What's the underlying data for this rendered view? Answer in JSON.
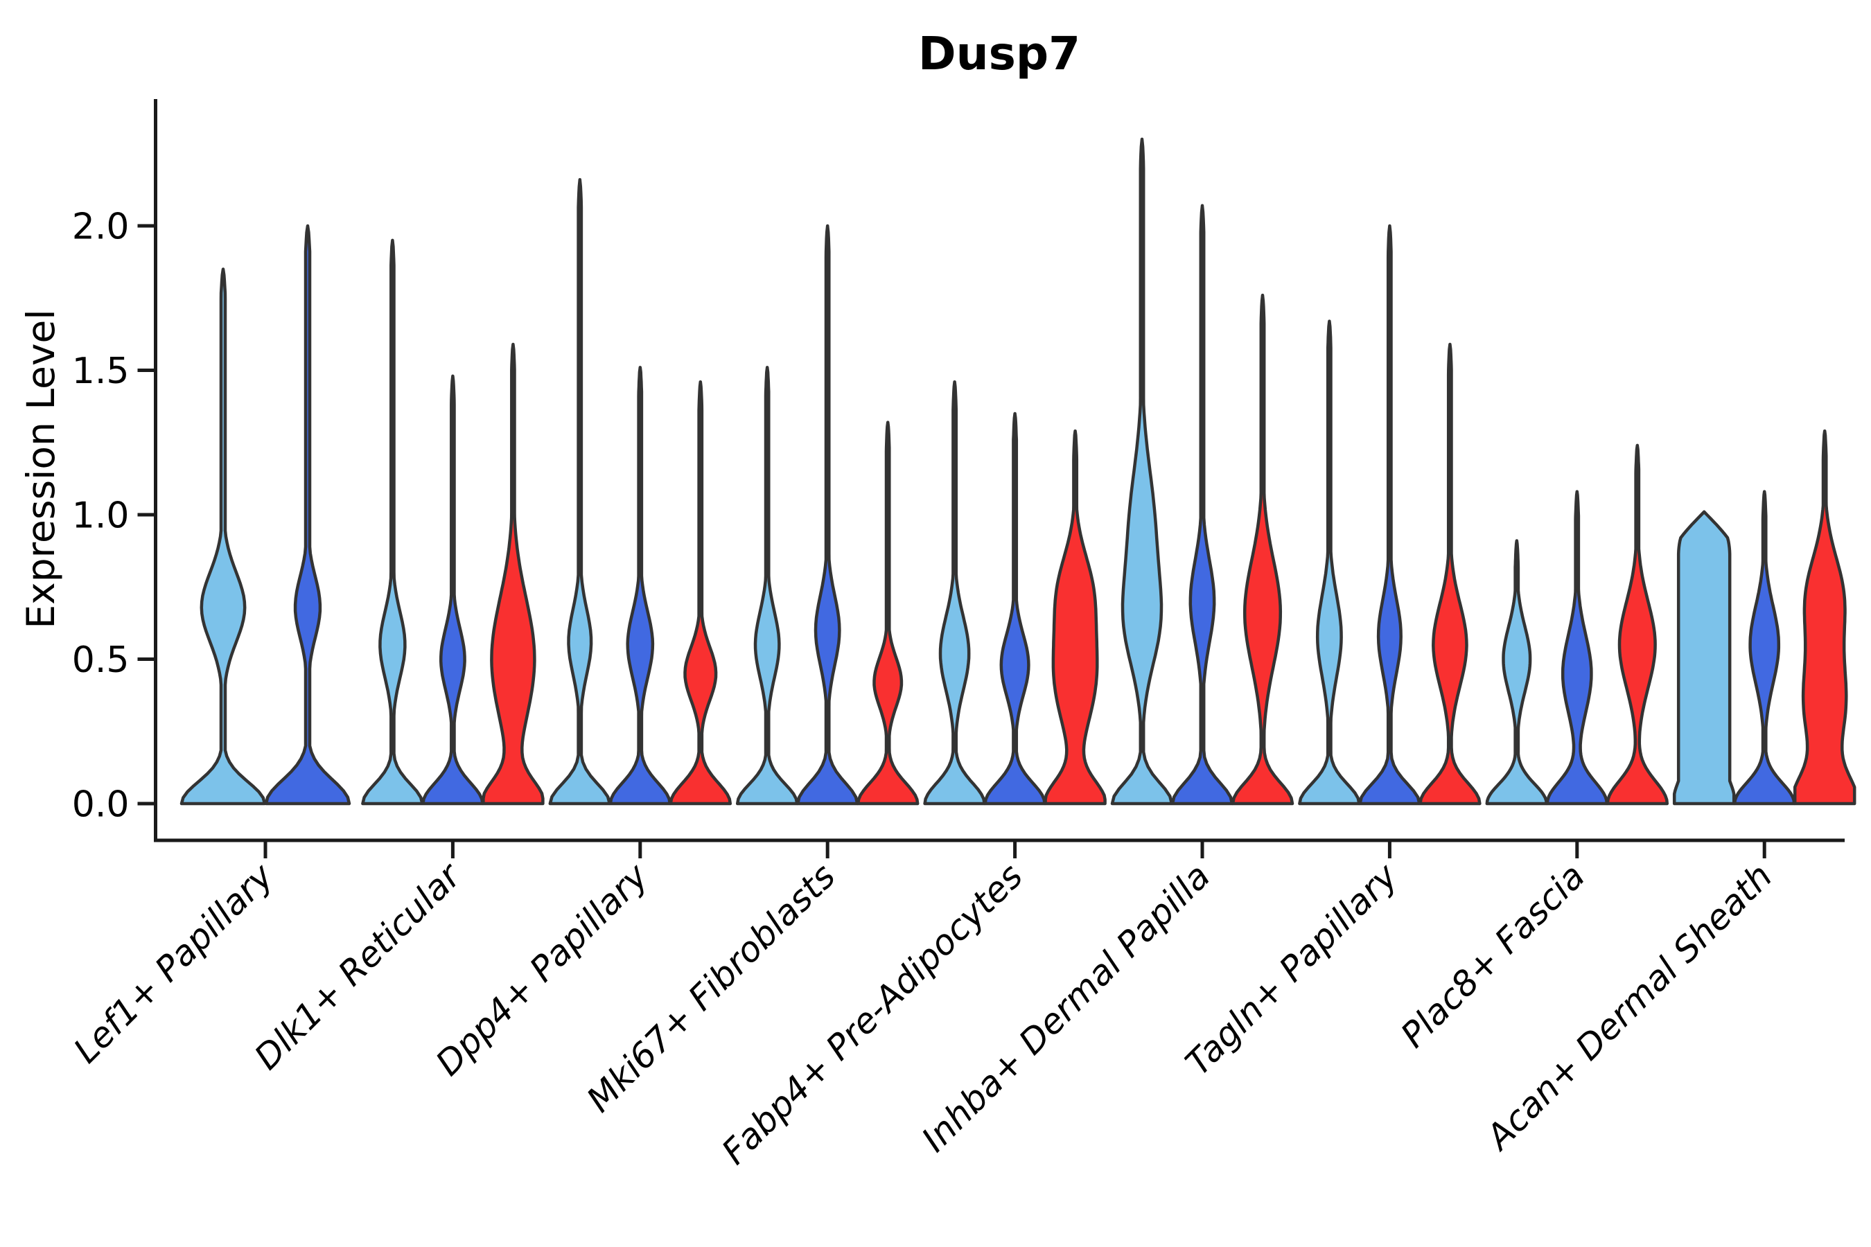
{
  "title": "Dusp7",
  "axes": {
    "ylabel": "Expression Level",
    "yticks": [
      "0.0",
      "0.5",
      "1.0",
      "1.5",
      "2.0"
    ],
    "ytick_values": [
      0.0,
      0.5,
      1.0,
      1.5,
      2.0
    ]
  },
  "palette": {
    "light_blue": "#7CC2EA",
    "dark_blue": "#4169E1",
    "red": "#F93030",
    "violin_stroke": "#333333",
    "axis_color": "#1a1a1a",
    "background": "#FFFFFF"
  },
  "chart_data": {
    "type": "violin",
    "title": "Dusp7",
    "xlabel": "",
    "ylabel": "Expression Level",
    "ylim": [
      -0.12,
      2.44
    ],
    "yticks": [
      0.0,
      0.5,
      1.0,
      1.5,
      2.0
    ],
    "grid": false,
    "legend": "none",
    "categories": [
      "Lef1+ Papillary",
      "Dlk1+ Reticular",
      "Dpp4+ Papillary",
      "Mki67+ Fibroblasts",
      "Fabp4+ Pre-Adipocytes",
      "Inhba+ Dermal Papilla",
      "Tagln+ Papillary",
      "Plac8+ Fascia",
      "Acan+ Dermal Sheath"
    ],
    "series": [
      {
        "name": "light_blue",
        "color_key": "light_blue",
        "max_expression": [
          1.85,
          1.95,
          2.16,
          1.51,
          1.46,
          2.3,
          1.67,
          0.91,
          1.01
        ]
      },
      {
        "name": "dark_blue",
        "color_key": "dark_blue",
        "max_expression": [
          2.0,
          1.48,
          1.51,
          2.0,
          1.35,
          2.07,
          2.0,
          1.08,
          1.08
        ]
      },
      {
        "name": "red",
        "color_key": "red",
        "max_expression": [
          null,
          1.59,
          1.46,
          1.32,
          1.29,
          1.76,
          1.59,
          1.24,
          1.29
        ]
      }
    ],
    "violins": [
      {
        "cat": 0,
        "series": "light_blue",
        "tip": 1.85,
        "base_w": 0.105,
        "bulges": [
          {
            "c": 0.68,
            "a": 0.52,
            "w": 0.17
          }
        ]
      },
      {
        "cat": 0,
        "series": "dark_blue",
        "tip": 2.0,
        "base_w": 0.115,
        "bulges": [
          {
            "c": 0.68,
            "a": 0.3,
            "w": 0.15
          }
        ]
      },
      {
        "cat": 1,
        "series": "light_blue",
        "tip": 1.95,
        "base_w": 0.095,
        "bulges": [
          {
            "c": 0.55,
            "a": 0.42,
            "w": 0.16
          }
        ]
      },
      {
        "cat": 1,
        "series": "dark_blue",
        "tip": 1.48,
        "base_w": 0.1,
        "bulges": [
          {
            "c": 0.5,
            "a": 0.4,
            "w": 0.15
          }
        ]
      },
      {
        "cat": 1,
        "series": "red",
        "tip": 1.59,
        "base_w": 0.11,
        "bulges": [
          {
            "c": 0.5,
            "a": 0.72,
            "w": 0.3
          }
        ]
      },
      {
        "cat": 2,
        "series": "light_blue",
        "tip": 2.16,
        "base_w": 0.095,
        "bulges": [
          {
            "c": 0.56,
            "a": 0.38,
            "w": 0.16
          }
        ]
      },
      {
        "cat": 2,
        "series": "dark_blue",
        "tip": 1.51,
        "base_w": 0.1,
        "bulges": [
          {
            "c": 0.55,
            "a": 0.42,
            "w": 0.16
          }
        ]
      },
      {
        "cat": 2,
        "series": "red",
        "tip": 1.46,
        "base_w": 0.1,
        "bulges": [
          {
            "c": 0.45,
            "a": 0.52,
            "w": 0.13
          }
        ]
      },
      {
        "cat": 3,
        "series": "light_blue",
        "tip": 1.51,
        "base_w": 0.095,
        "bulges": [
          {
            "c": 0.55,
            "a": 0.4,
            "w": 0.16
          }
        ]
      },
      {
        "cat": 3,
        "series": "dark_blue",
        "tip": 2.0,
        "base_w": 0.1,
        "bulges": [
          {
            "c": 0.6,
            "a": 0.4,
            "w": 0.17
          }
        ]
      },
      {
        "cat": 3,
        "series": "red",
        "tip": 1.32,
        "base_w": 0.1,
        "bulges": [
          {
            "c": 0.42,
            "a": 0.46,
            "w": 0.12
          }
        ]
      },
      {
        "cat": 4,
        "series": "light_blue",
        "tip": 1.46,
        "base_w": 0.1,
        "bulges": [
          {
            "c": 0.52,
            "a": 0.48,
            "w": 0.18
          }
        ]
      },
      {
        "cat": 4,
        "series": "dark_blue",
        "tip": 1.35,
        "base_w": 0.1,
        "bulges": [
          {
            "c": 0.48,
            "a": 0.46,
            "w": 0.15
          }
        ]
      },
      {
        "cat": 4,
        "series": "red",
        "tip": 1.29,
        "base_w": 0.11,
        "bulges": [
          {
            "c": 0.45,
            "a": 0.7,
            "w": 0.25
          },
          {
            "c": 0.75,
            "a": 0.45,
            "w": 0.18
          }
        ]
      },
      {
        "cat": 5,
        "series": "light_blue",
        "tip": 2.3,
        "base_w": 0.1,
        "bulges": [
          {
            "c": 0.62,
            "a": 0.5,
            "w": 0.22
          },
          {
            "c": 0.95,
            "a": 0.42,
            "w": 0.3
          }
        ]
      },
      {
        "cat": 5,
        "series": "dark_blue",
        "tip": 2.07,
        "base_w": 0.1,
        "bulges": [
          {
            "c": 0.7,
            "a": 0.4,
            "w": 0.2
          }
        ]
      },
      {
        "cat": 5,
        "series": "red",
        "tip": 1.76,
        "base_w": 0.1,
        "bulges": [
          {
            "c": 0.66,
            "a": 0.6,
            "w": 0.26
          }
        ]
      },
      {
        "cat": 6,
        "series": "light_blue",
        "tip": 1.67,
        "base_w": 0.095,
        "bulges": [
          {
            "c": 0.58,
            "a": 0.4,
            "w": 0.2
          }
        ]
      },
      {
        "cat": 6,
        "series": "dark_blue",
        "tip": 2.0,
        "base_w": 0.095,
        "bulges": [
          {
            "c": 0.58,
            "a": 0.38,
            "w": 0.18
          }
        ]
      },
      {
        "cat": 6,
        "series": "red",
        "tip": 1.59,
        "base_w": 0.1,
        "bulges": [
          {
            "c": 0.55,
            "a": 0.56,
            "w": 0.2
          }
        ]
      },
      {
        "cat": 7,
        "series": "light_blue",
        "tip": 0.91,
        "base_w": 0.095,
        "bulges": [
          {
            "c": 0.5,
            "a": 0.45,
            "w": 0.16
          }
        ]
      },
      {
        "cat": 7,
        "series": "dark_blue",
        "tip": 1.08,
        "base_w": 0.105,
        "bulges": [
          {
            "c": 0.45,
            "a": 0.48,
            "w": 0.19
          }
        ]
      },
      {
        "cat": 7,
        "series": "red",
        "tip": 1.24,
        "base_w": 0.11,
        "bulges": [
          {
            "c": 0.55,
            "a": 0.6,
            "w": 0.21
          }
        ]
      },
      {
        "cat": 8,
        "series": "light_blue",
        "tip": 1.01,
        "base_w": 0.16,
        "bulges": [
          {
            "c": 0.5,
            "a": 0.5,
            "w": 0.3
          }
        ],
        "plateau": {
          "until": 0.86,
          "w": 0.86
        }
      },
      {
        "cat": 8,
        "series": "dark_blue",
        "tip": 1.08,
        "base_w": 0.1,
        "bulges": [
          {
            "c": 0.55,
            "a": 0.48,
            "w": 0.19
          }
        ]
      },
      {
        "cat": 8,
        "series": "red",
        "tip": 1.29,
        "base_w": 0.13,
        "bulges": [
          {
            "c": 0.35,
            "a": 0.7,
            "w": 0.25
          },
          {
            "c": 0.72,
            "a": 0.58,
            "w": 0.2
          }
        ]
      }
    ]
  }
}
